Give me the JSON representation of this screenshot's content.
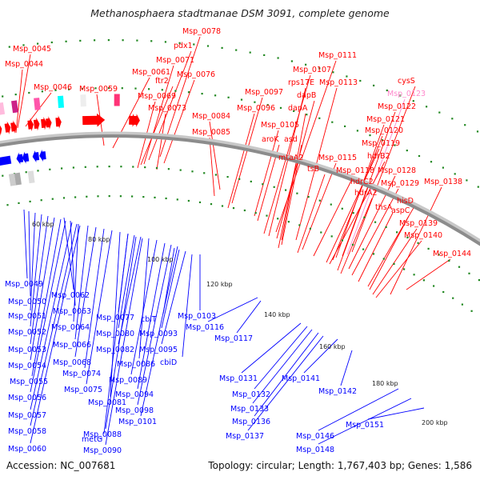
{
  "title": "Methanosphaera stadtmanae DSM 3091, complete genome",
  "accession": "Accession: NC_007681",
  "summary": "Topology: circular; Length: 1,767,403 bp; Genes: 1,586",
  "colors": {
    "forward": "#ff0000",
    "reverse": "#0000ff",
    "highlight": "#ff88cc",
    "backbone": "#8c8c8c",
    "tick": "#228822"
  },
  "kbp_marks": [
    "60 kbp",
    "80 kbp",
    "100 kbp",
    "120 kbp",
    "140 kbp",
    "160 kbp",
    "180 kbp",
    "200 kbp"
  ],
  "upper_labels": [
    {
      "text": "Msp_0045"
    },
    {
      "text": "Msp_0044"
    },
    {
      "text": "Msp_0046"
    },
    {
      "text": "Msp_0059"
    },
    {
      "text": "Msp_0078"
    },
    {
      "text": "pdx1"
    },
    {
      "text": "Msp_0071"
    },
    {
      "text": "Msp_0061"
    },
    {
      "text": "Msp_0076"
    },
    {
      "text": "ftr2"
    },
    {
      "text": "Msp_0069"
    },
    {
      "text": "Msp_0073"
    },
    {
      "text": "Msp_0084"
    },
    {
      "text": "Msp_0085"
    },
    {
      "text": "Msp_0097"
    },
    {
      "text": "Msp_0096"
    },
    {
      "text": "Msp_0111"
    },
    {
      "text": "Msp_0107"
    },
    {
      "text": "rps17E"
    },
    {
      "text": "Msp_0113"
    },
    {
      "text": "dapB"
    },
    {
      "text": "dapA"
    },
    {
      "text": "Msp_0105"
    },
    {
      "text": "aroK"
    },
    {
      "text": "asd"
    },
    {
      "text": "mtaA2"
    },
    {
      "text": "Msp_0115"
    },
    {
      "text": "tsB"
    },
    {
      "text": "Msp_0118"
    },
    {
      "text": "cysS"
    },
    {
      "text": "Msp_0123",
      "highlight": true
    },
    {
      "text": "Msp_0122"
    },
    {
      "text": "Msp_0121"
    },
    {
      "text": "Msp_0120"
    },
    {
      "text": "Msp_0119"
    },
    {
      "text": "hdrB2"
    },
    {
      "text": "hdrC2"
    },
    {
      "text": "hdrA2"
    },
    {
      "text": "Msp_0128"
    },
    {
      "text": "Msp_0129"
    },
    {
      "text": "Msp_0138"
    },
    {
      "text": "thsA"
    },
    {
      "text": "hisD"
    },
    {
      "text": "aspC"
    },
    {
      "text": "Msp_0139"
    },
    {
      "text": "Msp_0140"
    },
    {
      "text": "Msp_0144"
    }
  ],
  "lower_labels": [
    {
      "text": "Msp_0049"
    },
    {
      "text": "Msp_0050"
    },
    {
      "text": "Msp_0062"
    },
    {
      "text": "Msp_0051"
    },
    {
      "text": "Msp_0063"
    },
    {
      "text": "Msp_0052"
    },
    {
      "text": "Msp_0064"
    },
    {
      "text": "Msp_0077"
    },
    {
      "text": "cbiT"
    },
    {
      "text": "Msp_0103"
    },
    {
      "text": "Msp_0053"
    },
    {
      "text": "Msp_0066"
    },
    {
      "text": "Msp_0080"
    },
    {
      "text": "Msp_0093"
    },
    {
      "text": "Msp_0116"
    },
    {
      "text": "Msp_0117"
    },
    {
      "text": "Msp_0054"
    },
    {
      "text": "Msp_0068"
    },
    {
      "text": "Msp_0082"
    },
    {
      "text": "Msp_0095"
    },
    {
      "text": "Msp_0086"
    },
    {
      "text": "cbiD"
    },
    {
      "text": "Msp_0055"
    },
    {
      "text": "Msp_0074"
    },
    {
      "text": "Msp_0089"
    },
    {
      "text": "Msp_0056"
    },
    {
      "text": "Msp_0075"
    },
    {
      "text": "Msp_0094"
    },
    {
      "text": "Msp_0081"
    },
    {
      "text": "Msp_0057"
    },
    {
      "text": "Msp_0098"
    },
    {
      "text": "metG"
    },
    {
      "text": "Msp_0101"
    },
    {
      "text": "Msp_0058"
    },
    {
      "text": "Msp_0088"
    },
    {
      "text": "Msp_0060"
    },
    {
      "text": "Msp_0090"
    },
    {
      "text": "Msp_0131"
    },
    {
      "text": "Msp_0141"
    },
    {
      "text": "Msp_0132"
    },
    {
      "text": "Msp_0142"
    },
    {
      "text": "Msp_0133"
    },
    {
      "text": "Msp_0136"
    },
    {
      "text": "Msp_0137"
    },
    {
      "text": "Msp_0146"
    },
    {
      "text": "Msp_0151"
    },
    {
      "text": "Msp_0148"
    }
  ]
}
